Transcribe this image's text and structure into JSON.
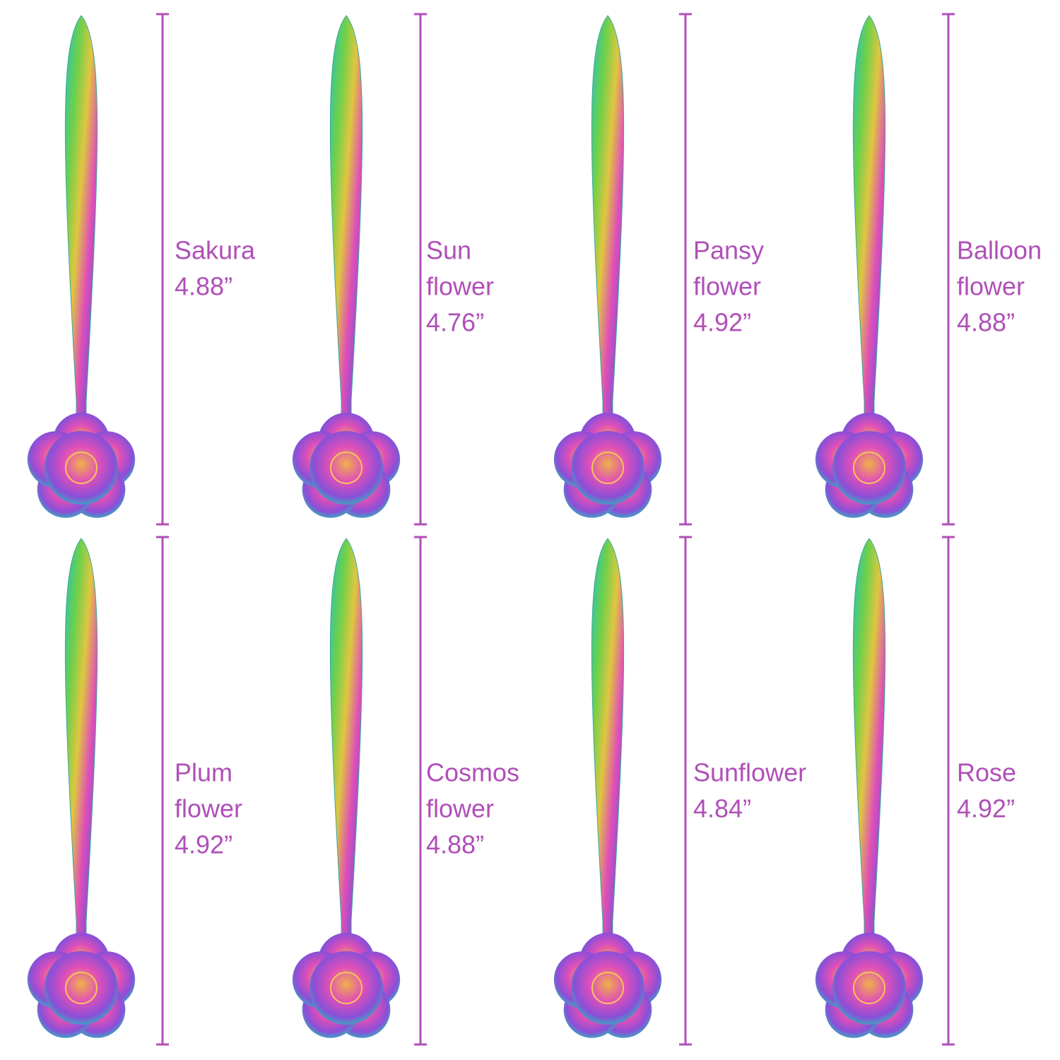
{
  "items": [
    {
      "name_lines": [
        "Sakura"
      ],
      "length": "4.88”"
    },
    {
      "name_lines": [
        "Sun",
        "flower"
      ],
      "length": "4.76”"
    },
    {
      "name_lines": [
        "Pansy",
        "flower"
      ],
      "length": "4.92”"
    },
    {
      "name_lines": [
        "Balloon",
        "flower"
      ],
      "length": "4.88”"
    },
    {
      "name_lines": [
        "Plum",
        "flower"
      ],
      "length": "4.92”"
    },
    {
      "name_lines": [
        "Cosmos",
        "flower"
      ],
      "length": "4.88”"
    },
    {
      "name_lines": [
        "Sunflower"
      ],
      "length": "4.84”"
    },
    {
      "name_lines": [
        "Rose"
      ],
      "length": "4.92”"
    }
  ]
}
